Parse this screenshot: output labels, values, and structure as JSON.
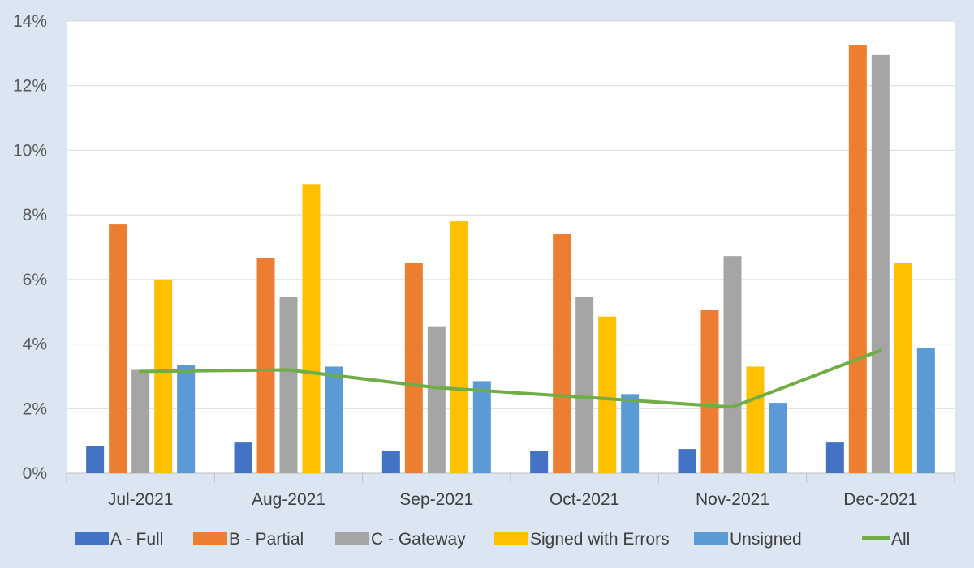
{
  "chart_data": {
    "type": "bar",
    "title": "",
    "xlabel": "",
    "ylabel": "",
    "categories": [
      "Jul-2021",
      "Aug-2021",
      "Sep-2021",
      "Oct-2021",
      "Nov-2021",
      "Dec-2021"
    ],
    "ylim": [
      0,
      14
    ],
    "yticks": [
      0,
      2,
      4,
      6,
      8,
      10,
      12,
      14
    ],
    "ytick_labels": [
      "0%",
      "2%",
      "4%",
      "6%",
      "8%",
      "10%",
      "12%",
      "14%"
    ],
    "grid": true,
    "legend_position": "bottom",
    "series": [
      {
        "name": "A - Full",
        "type": "bar",
        "color": "#4472c4",
        "values": [
          0.85,
          0.95,
          0.68,
          0.7,
          0.75,
          0.95
        ]
      },
      {
        "name": "B - Partial",
        "type": "bar",
        "color": "#ed7d31",
        "values": [
          7.7,
          6.65,
          6.5,
          7.4,
          5.05,
          13.25
        ]
      },
      {
        "name": "C - Gateway",
        "type": "bar",
        "color": "#a5a5a5",
        "values": [
          3.2,
          5.45,
          4.55,
          5.45,
          6.72,
          12.95
        ]
      },
      {
        "name": "Signed with Errors",
        "type": "bar",
        "color": "#ffc000",
        "values": [
          6.0,
          8.95,
          7.8,
          4.85,
          3.3,
          6.5
        ]
      },
      {
        "name": "Unsigned",
        "type": "bar",
        "color": "#5b9bd5",
        "values": [
          3.35,
          3.3,
          2.85,
          2.45,
          2.18,
          3.88
        ]
      },
      {
        "name": "All",
        "type": "line",
        "color": "#70ad47",
        "values": [
          3.15,
          3.2,
          2.65,
          2.35,
          2.05,
          3.8
        ]
      }
    ]
  }
}
